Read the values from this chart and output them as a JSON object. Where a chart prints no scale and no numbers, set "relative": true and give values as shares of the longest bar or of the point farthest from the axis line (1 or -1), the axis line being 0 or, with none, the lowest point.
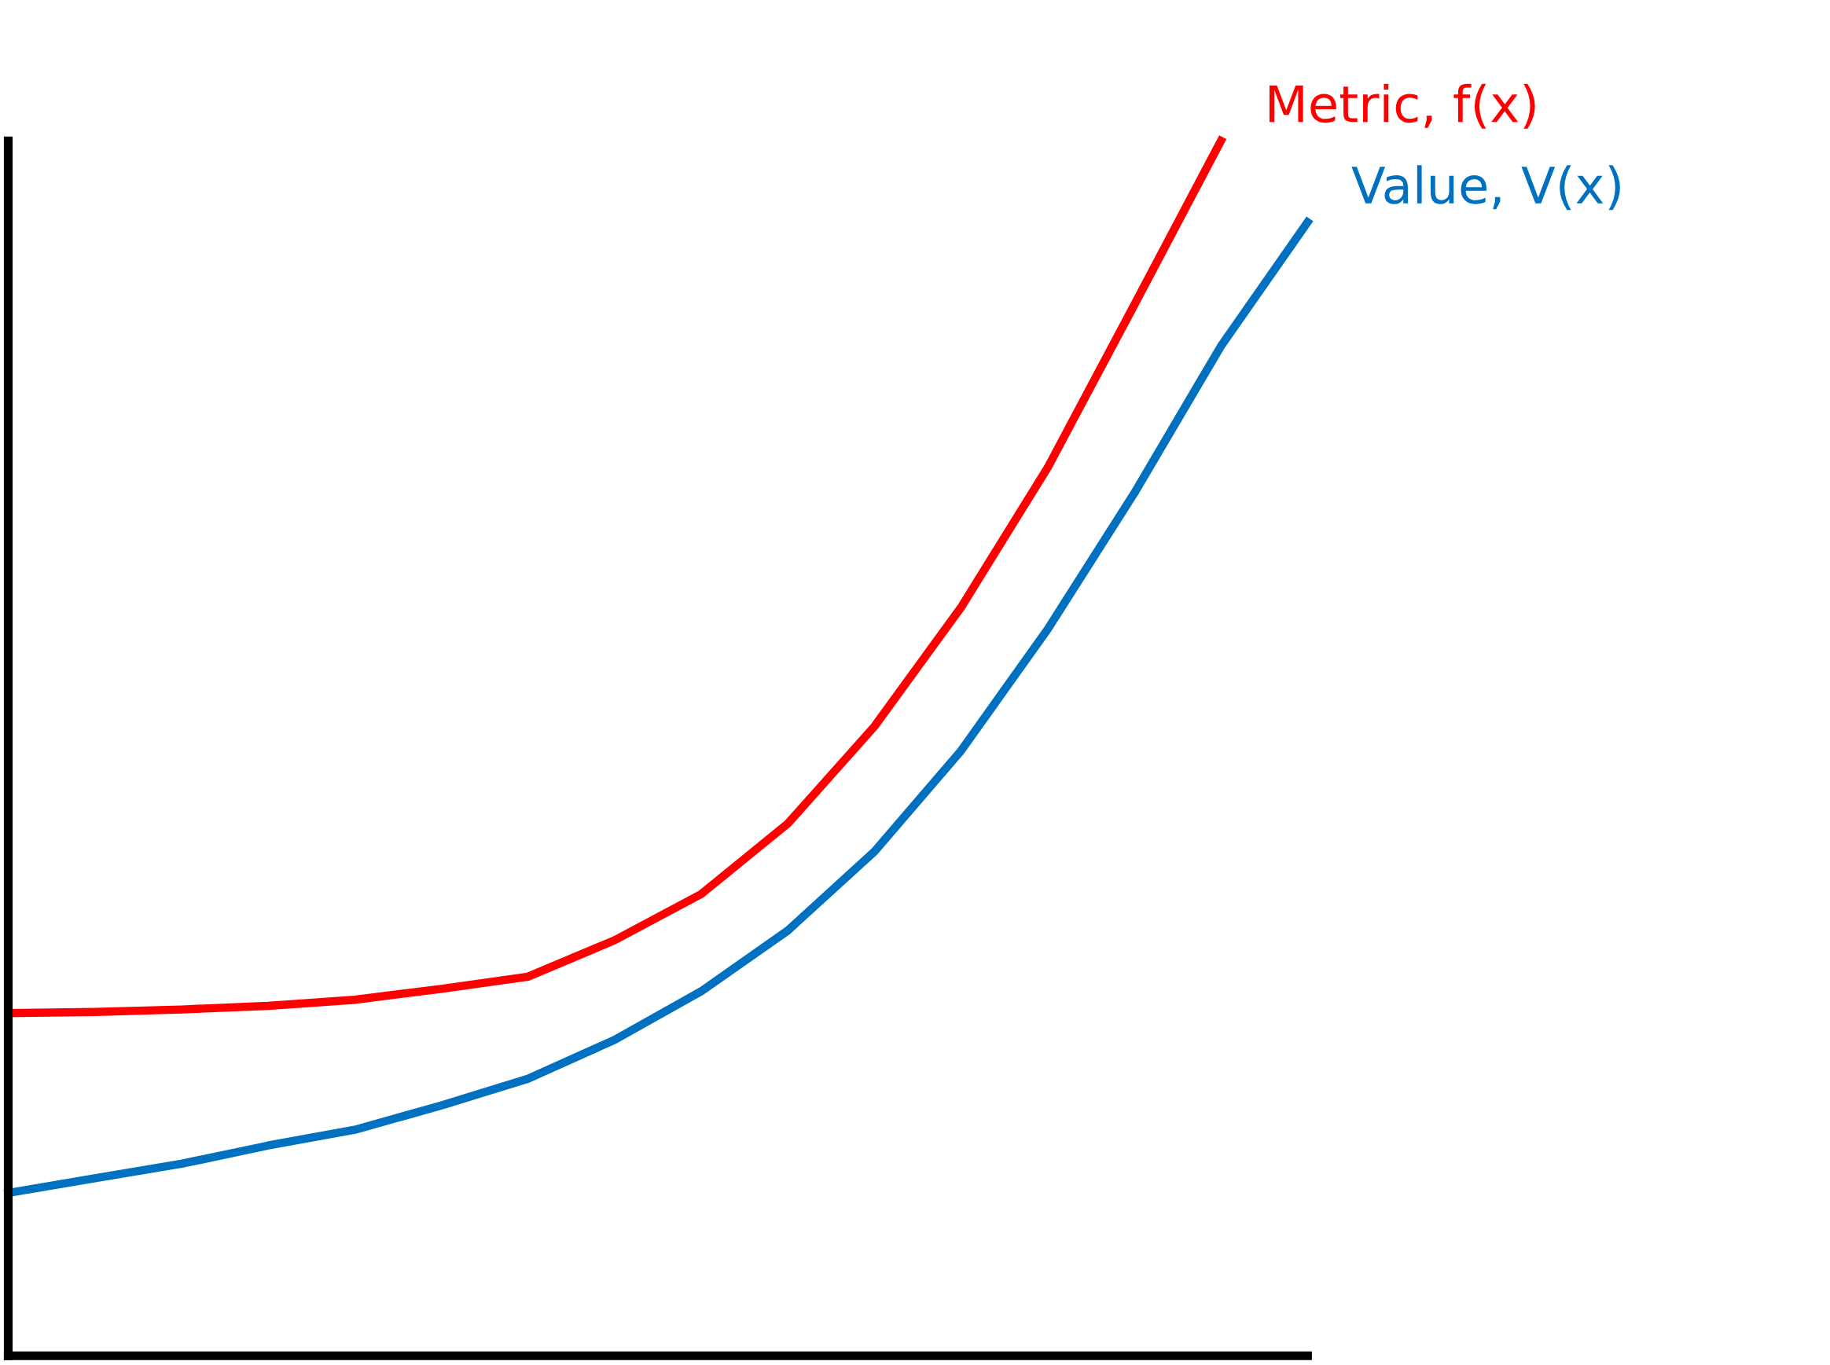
{
  "chart_data": {
    "type": "line",
    "relative": true,
    "legend": false,
    "categories": [
      null,
      null,
      null,
      null,
      null,
      null,
      null,
      null,
      null,
      null,
      null,
      null,
      null,
      null,
      null,
      null
    ],
    "series": [
      {
        "name": "Metric, f(x)",
        "color": "#ff0000",
        "values": [
          0.282,
          0.283,
          0.285,
          0.288,
          0.293,
          0.302,
          0.312,
          0.342,
          0.38,
          0.438,
          0.518,
          0.616,
          0.731,
          0.865,
          1.0,
          null
        ]
      },
      {
        "name": "Value, V(x)",
        "color": "#0070c0",
        "values": [
          0.134,
          0.146,
          0.158,
          0.173,
          0.186,
          0.206,
          0.228,
          0.26,
          0.3,
          0.35,
          0.415,
          0.498,
          0.598,
          0.71,
          0.831,
          0.933
        ]
      }
    ]
  }
}
